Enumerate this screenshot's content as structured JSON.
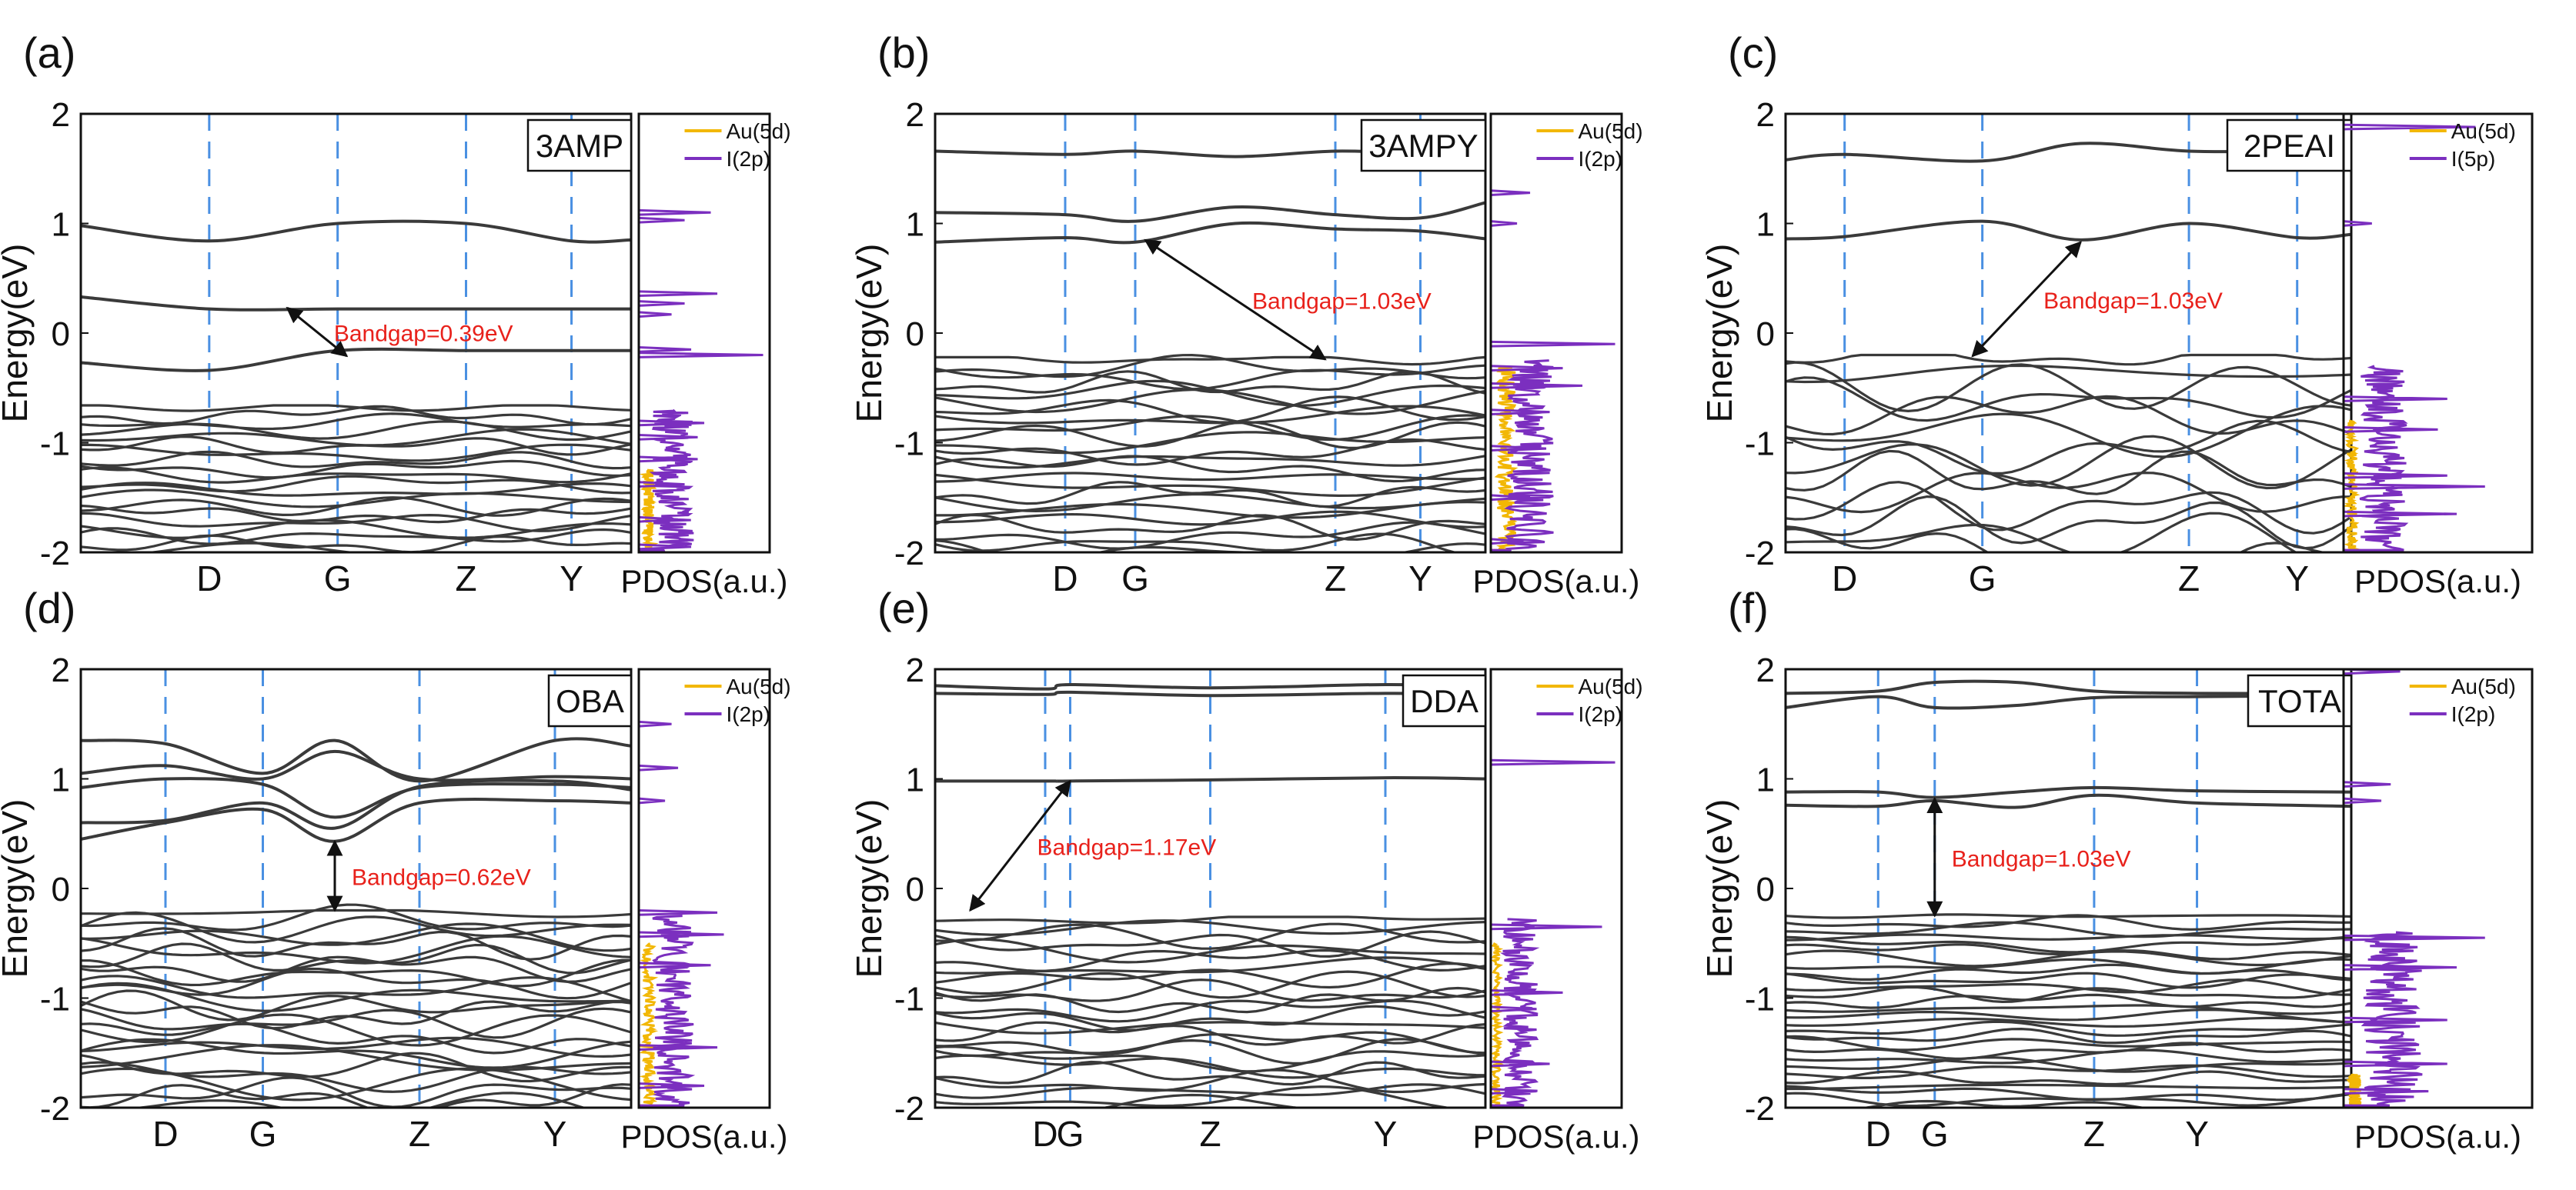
{
  "figure": {
    "colors": {
      "band": "#3a3a3a",
      "kpath": "#4a90e2",
      "au5d": "#f2b705",
      "ip": "#7b2fbf",
      "gap": "#e8211b"
    },
    "common": {
      "ylabel": "Energy(eV)",
      "pdos_label": "PDOS(a.u.)",
      "ylim": [
        -2,
        2
      ],
      "yticks": [
        "-2",
        "-1",
        "0",
        "1",
        "2"
      ],
      "kpoints": [
        "D",
        "G",
        "Z",
        "Y"
      ]
    }
  },
  "chart_data": [
    {
      "type": "line",
      "panel": "(a)",
      "material": "3AMP",
      "title": "",
      "xlabel": "",
      "ylabel": "Energy(eV)",
      "ylim": [
        -2,
        2
      ],
      "kpoint_labels": [
        "D",
        "G",
        "Z",
        "Y"
      ],
      "kpoint_positions": [
        0.28,
        0.56,
        0.84,
        1.07
      ],
      "gap_annotation": "Bandgap=0.39eV",
      "gap_arrow": {
        "x1": 0.45,
        "y1": 0.23,
        "x2": 0.58,
        "y2": -0.21
      },
      "conduction_bands": [
        {
          "x": [
            0,
            0.28,
            0.56,
            0.84,
            1.07,
            1.2
          ],
          "y": [
            0.98,
            0.84,
            1.0,
            1.0,
            0.84,
            0.85
          ]
        },
        {
          "x": [
            0,
            0.28,
            0.56,
            0.84,
            1.07,
            1.2
          ],
          "y": [
            0.33,
            0.22,
            0.22,
            0.22,
            0.22,
            0.22
          ]
        },
        {
          "x": [
            0,
            0.28,
            0.56,
            0.84,
            1.07,
            1.2
          ],
          "y": [
            -0.27,
            -0.34,
            -0.16,
            -0.16,
            -0.16,
            -0.16
          ]
        }
      ],
      "valence": {
        "top": -0.68,
        "bottom": -2.0,
        "count": 20,
        "amp": 0.07
      },
      "pdos": {
        "legend": [
          "Au(5d)",
          "I(2p)"
        ],
        "i_peaks": [
          [
            1.1,
            0.55
          ],
          [
            1.03,
            0.35
          ],
          [
            0.36,
            0.6
          ],
          [
            0.27,
            0.35
          ],
          [
            0.17,
            0.25
          ],
          [
            -0.15,
            0.4
          ],
          [
            -0.2,
            0.95
          ],
          [
            -0.82,
            0.5
          ],
          [
            -0.95,
            0.45
          ],
          [
            -1.15,
            0.45
          ],
          [
            -1.38,
            0.35
          ],
          [
            -1.7,
            0.3
          ],
          [
            -1.95,
            0.4
          ]
        ],
        "i_band": [
          -1.98,
          -0.7,
          0.35
        ],
        "au_band": [
          -1.98,
          -1.25,
          0.1
        ]
      }
    },
    {
      "type": "line",
      "panel": "(b)",
      "material": "3AMPY",
      "title": "",
      "xlabel": "",
      "ylabel": "Energy(eV)",
      "ylim": [
        -2,
        2
      ],
      "kpoint_labels": [
        "D",
        "G",
        "Z",
        "Y"
      ],
      "kpoint_positions": [
        0.26,
        0.4,
        0.8,
        0.97
      ],
      "gap_annotation": "Bandgap=1.03eV",
      "gap_arrow": {
        "x1": 0.42,
        "y1": 0.85,
        "x2": 0.78,
        "y2": -0.24
      },
      "conduction_bands": [
        {
          "x": [
            0,
            0.26,
            0.4,
            0.6,
            0.8,
            0.97,
            1.1
          ],
          "y": [
            1.66,
            1.63,
            1.66,
            1.61,
            1.66,
            1.64,
            1.65
          ]
        },
        {
          "x": [
            0,
            0.26,
            0.4,
            0.6,
            0.8,
            0.97,
            1.1
          ],
          "y": [
            1.1,
            1.08,
            1.02,
            1.15,
            1.08,
            1.05,
            1.19
          ]
        },
        {
          "x": [
            0,
            0.26,
            0.4,
            0.6,
            0.8,
            0.97,
            1.1
          ],
          "y": [
            0.83,
            0.87,
            0.83,
            1.0,
            0.95,
            0.93,
            0.86
          ]
        }
      ],
      "valence": {
        "top": -0.24,
        "bottom": -2.0,
        "count": 24,
        "amp": 0.1
      },
      "pdos": {
        "legend": [
          "Au(5d)",
          "I(2p)"
        ],
        "i_peaks": [
          [
            1.28,
            0.3
          ],
          [
            1.0,
            0.2
          ],
          [
            -0.1,
            0.95
          ],
          [
            -0.32,
            0.55
          ],
          [
            -0.48,
            0.7
          ],
          [
            -0.72,
            0.45
          ],
          [
            -1.05,
            0.35
          ],
          [
            -1.5,
            0.3
          ],
          [
            -1.9,
            0.25
          ]
        ],
        "i_band": [
          -1.98,
          -0.25,
          0.4
        ],
        "au_band": [
          -1.98,
          -0.3,
          0.16
        ]
      }
    },
    {
      "type": "line",
      "panel": "(c)",
      "material": "2PEAI",
      "title": "",
      "xlabel": "",
      "ylabel": "Energy(eV)",
      "ylim": [
        -2,
        2
      ],
      "kpoint_labels": [
        "D",
        "G",
        "Z",
        "Y"
      ],
      "kpoint_positions": [
        0.12,
        0.4,
        0.82,
        1.04
      ],
      "gap_annotation": "Bandgap=1.03eV",
      "gap_arrow": {
        "x1": 0.6,
        "y1": 0.83,
        "x2": 0.38,
        "y2": -0.21
      },
      "conduction_bands": [
        {
          "x": [
            0,
            0.12,
            0.4,
            0.6,
            0.82,
            1.04,
            1.15
          ],
          "y": [
            1.58,
            1.63,
            1.57,
            1.73,
            1.66,
            1.66,
            1.65
          ]
        },
        {
          "x": [
            0,
            0.12,
            0.4,
            0.6,
            0.82,
            1.04,
            1.15
          ],
          "y": [
            0.86,
            0.88,
            1.02,
            0.85,
            1.0,
            0.87,
            0.9
          ]
        }
      ],
      "valence": {
        "top": -0.22,
        "bottom": -2.0,
        "count": 14,
        "amp": 0.2
      },
      "pdos": {
        "legend": [
          "Au(5d)",
          "I(5p)"
        ],
        "i_peaks": [
          [
            1.88,
            0.7
          ],
          [
            1.0,
            0.15
          ],
          [
            -0.6,
            0.55
          ],
          [
            -0.88,
            0.5
          ],
          [
            -1.3,
            0.55
          ],
          [
            -1.4,
            0.75
          ],
          [
            -1.65,
            0.6
          ]
        ],
        "i_band": [
          -1.98,
          -0.3,
          0.28
        ],
        "au_band": [
          -1.98,
          -0.8,
          0.06
        ]
      }
    },
    {
      "type": "line",
      "panel": "(d)",
      "material": "OBA",
      "title": "",
      "xlabel": "",
      "ylabel": "Energy(eV)",
      "ylim": [
        -2,
        2
      ],
      "kpoint_labels": [
        "D",
        "G",
        "Z",
        "Y"
      ],
      "kpoint_positions": [
        0.2,
        0.43,
        0.8,
        1.12
      ],
      "gap_annotation": "Bandgap=0.62eV",
      "gap_arrow": {
        "x1": 0.6,
        "y1": 0.43,
        "x2": 0.6,
        "y2": -0.2
      },
      "conduction_bands": [
        {
          "x": [
            0,
            0.2,
            0.43,
            0.6,
            0.8,
            1.12,
            1.3
          ],
          "y": [
            1.35,
            1.32,
            1.05,
            1.35,
            0.98,
            1.35,
            1.3
          ]
        },
        {
          "x": [
            0,
            0.2,
            0.43,
            0.6,
            0.8,
            1.12,
            1.3
          ],
          "y": [
            1.05,
            1.12,
            1.0,
            1.25,
            1.0,
            1.02,
            1.0
          ]
        },
        {
          "x": [
            0,
            0.2,
            0.43,
            0.6,
            0.8,
            1.12,
            1.3
          ],
          "y": [
            0.92,
            1.0,
            0.95,
            0.65,
            0.92,
            0.95,
            0.92
          ]
        },
        {
          "x": [
            0,
            0.2,
            0.43,
            0.6,
            0.8,
            1.12,
            1.3
          ],
          "y": [
            0.6,
            0.62,
            0.78,
            0.55,
            0.93,
            0.98,
            0.9
          ]
        },
        {
          "x": [
            0,
            0.2,
            0.43,
            0.6,
            0.8,
            1.12,
            1.3
          ],
          "y": [
            0.45,
            0.6,
            0.72,
            0.43,
            0.78,
            0.8,
            0.78
          ]
        }
      ],
      "valence": {
        "top": -0.22,
        "bottom": -2.0,
        "count": 26,
        "amp": 0.12
      },
      "pdos": {
        "legend": [
          "Au(5d)",
          "I(2p)"
        ],
        "i_peaks": [
          [
            1.5,
            0.25
          ],
          [
            1.1,
            0.3
          ],
          [
            0.8,
            0.2
          ],
          [
            -0.22,
            0.6
          ],
          [
            -0.42,
            0.65
          ],
          [
            -0.7,
            0.55
          ],
          [
            -1.45,
            0.6
          ],
          [
            -1.8,
            0.5
          ]
        ],
        "i_band": [
          -1.98,
          -0.25,
          0.35
        ],
        "au_band": [
          -1.98,
          -0.5,
          0.1
        ]
      }
    },
    {
      "type": "line",
      "panel": "(e)",
      "material": "DDA",
      "title": "",
      "xlabel": "",
      "ylabel": "Energy(eV)",
      "ylim": [
        -2,
        2
      ],
      "kpoint_labels": [
        "D",
        "G",
        "Z",
        "Y"
      ],
      "kpoint_positions": [
        0.22,
        0.27,
        0.55,
        0.9
      ],
      "gap_annotation": "Bandgap=1.17eV",
      "gap_arrow": {
        "x1": 0.27,
        "y1": 0.98,
        "x2": 0.07,
        "y2": -0.2
      },
      "conduction_bands": [
        {
          "x": [
            0,
            0.22,
            0.27,
            0.55,
            0.9,
            1.1
          ],
          "y": [
            1.85,
            1.82,
            1.86,
            1.83,
            1.86,
            1.84
          ]
        },
        {
          "x": [
            0,
            0.22,
            0.27,
            0.55,
            0.9,
            1.1
          ],
          "y": [
            1.78,
            1.77,
            1.79,
            1.76,
            1.78,
            1.77
          ]
        },
        {
          "x": [
            0,
            0.22,
            0.27,
            0.55,
            0.9,
            1.1
          ],
          "y": [
            0.98,
            0.98,
            0.98,
            0.99,
            1.01,
            1.0
          ]
        }
      ],
      "valence": {
        "top": -0.28,
        "bottom": -2.0,
        "count": 24,
        "amp": 0.1
      },
      "pdos": {
        "legend": [
          "Au(5d)",
          "I(2p)"
        ],
        "i_peaks": [
          [
            1.15,
            0.95
          ],
          [
            -0.35,
            0.85
          ],
          [
            -0.95,
            0.55
          ],
          [
            -1.1,
            0.35
          ],
          [
            -1.6,
            0.45
          ],
          [
            -1.85,
            0.35
          ]
        ],
        "i_band": [
          -1.98,
          -0.28,
          0.3
        ],
        "au_band": [
          -1.98,
          -0.5,
          0.06
        ]
      }
    },
    {
      "type": "line",
      "panel": "(f)",
      "material": "TOTA",
      "title": "",
      "xlabel": "",
      "ylabel": "Energy(eV)",
      "ylim": [
        -2,
        2
      ],
      "kpoint_labels": [
        "D",
        "G",
        "Z",
        "Y"
      ],
      "kpoint_positions": [
        0.18,
        0.29,
        0.6,
        0.8
      ],
      "gap_annotation": "Bandgap=1.03eV",
      "gap_arrow": {
        "x1": 0.29,
        "y1": 0.82,
        "x2": 0.29,
        "y2": -0.25
      },
      "conduction_bands": [
        {
          "x": [
            0,
            0.18,
            0.29,
            0.45,
            0.6,
            0.8,
            1.1
          ],
          "y": [
            1.78,
            1.8,
            1.88,
            1.88,
            1.8,
            1.78,
            1.78
          ]
        },
        {
          "x": [
            0,
            0.18,
            0.29,
            0.45,
            0.6,
            0.8,
            1.1
          ],
          "y": [
            1.65,
            1.75,
            1.65,
            1.67,
            1.74,
            1.75,
            1.76
          ]
        },
        {
          "x": [
            0,
            0.18,
            0.29,
            0.45,
            0.6,
            0.8,
            1.1
          ],
          "y": [
            0.88,
            0.88,
            0.83,
            0.88,
            0.92,
            0.89,
            0.88
          ]
        },
        {
          "x": [
            0,
            0.18,
            0.29,
            0.45,
            0.6,
            0.8,
            1.1
          ],
          "y": [
            0.76,
            0.75,
            0.8,
            0.74,
            0.85,
            0.78,
            0.75
          ]
        }
      ],
      "valence": {
        "top": -0.25,
        "bottom": -2.0,
        "count": 28,
        "amp": 0.06
      },
      "pdos": {
        "legend": [
          "Au(5d)",
          "I(2p)"
        ],
        "i_peaks": [
          [
            1.98,
            0.3
          ],
          [
            0.95,
            0.25
          ],
          [
            0.8,
            0.2
          ],
          [
            -0.45,
            0.75
          ],
          [
            -0.72,
            0.6
          ],
          [
            -1.2,
            0.55
          ],
          [
            -1.6,
            0.55
          ],
          [
            -1.85,
            0.45
          ]
        ],
        "i_band": [
          -1.98,
          -0.4,
          0.35
        ],
        "au_band": [
          -1.98,
          -1.7,
          0.08
        ]
      }
    }
  ]
}
